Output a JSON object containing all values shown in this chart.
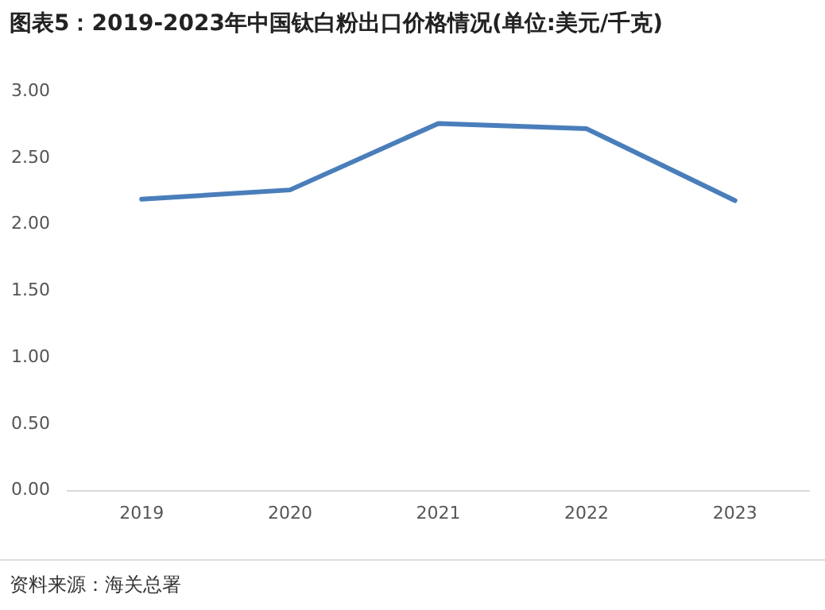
{
  "chart_data": {
    "type": "line",
    "title": "图表5：2019-2023年中国钛白粉出口价格情况(单位:美元/千克)",
    "categories": [
      "2019",
      "2020",
      "2021",
      "2022",
      "2023"
    ],
    "values": [
      2.19,
      2.26,
      2.76,
      2.72,
      2.18
    ],
    "color": "#4a7ebb",
    "ylim": [
      0,
      3
    ],
    "yticks": [
      {
        "value": 0,
        "label": "0.00"
      },
      {
        "value": 0.5,
        "label": "0.50"
      },
      {
        "value": 1,
        "label": "1.00"
      },
      {
        "value": 1.5,
        "label": "1.50"
      },
      {
        "value": 2,
        "label": "2.00"
      },
      {
        "value": 2.5,
        "label": "2.50"
      },
      {
        "value": 3,
        "label": "3.00"
      }
    ],
    "grid": false,
    "legend": false,
    "marker": "none",
    "line_style": "solid",
    "annotations": [
      "资料来源：海关总署"
    ]
  }
}
